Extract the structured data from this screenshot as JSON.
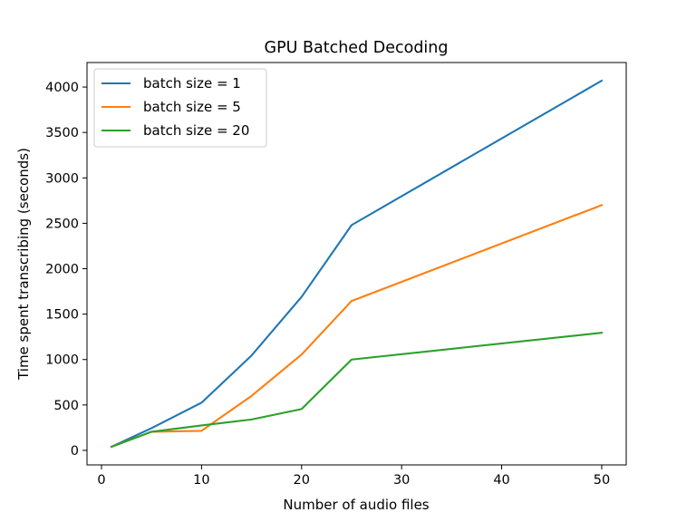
{
  "chart_data": {
    "type": "line",
    "title": "GPU Batched Decoding",
    "xlabel": "Number of audio files",
    "ylabel": "Time spent transcribing (seconds)",
    "xlim": [
      -1.45,
      52.45
    ],
    "ylim": [
      -160,
      4270
    ],
    "xticks": [
      0,
      10,
      20,
      30,
      40,
      50
    ],
    "yticks": [
      0,
      500,
      1000,
      1500,
      2000,
      2500,
      3000,
      3500,
      4000
    ],
    "grid": false,
    "legend_position": "upper-left",
    "x": [
      1,
      5,
      10,
      15,
      20,
      25,
      50
    ],
    "series": [
      {
        "name": "batch size = 1",
        "color": "#1f77b4",
        "values": [
          40,
          245,
          525,
          1045,
          1690,
          2480,
          4070
        ]
      },
      {
        "name": "batch size = 5",
        "color": "#ff7f0e",
        "values": [
          40,
          205,
          215,
          600,
          1055,
          1645,
          2700
        ]
      },
      {
        "name": "batch size = 20",
        "color": "#2ca02c",
        "values": [
          40,
          205,
          275,
          340,
          455,
          1000,
          1295
        ]
      }
    ]
  }
}
